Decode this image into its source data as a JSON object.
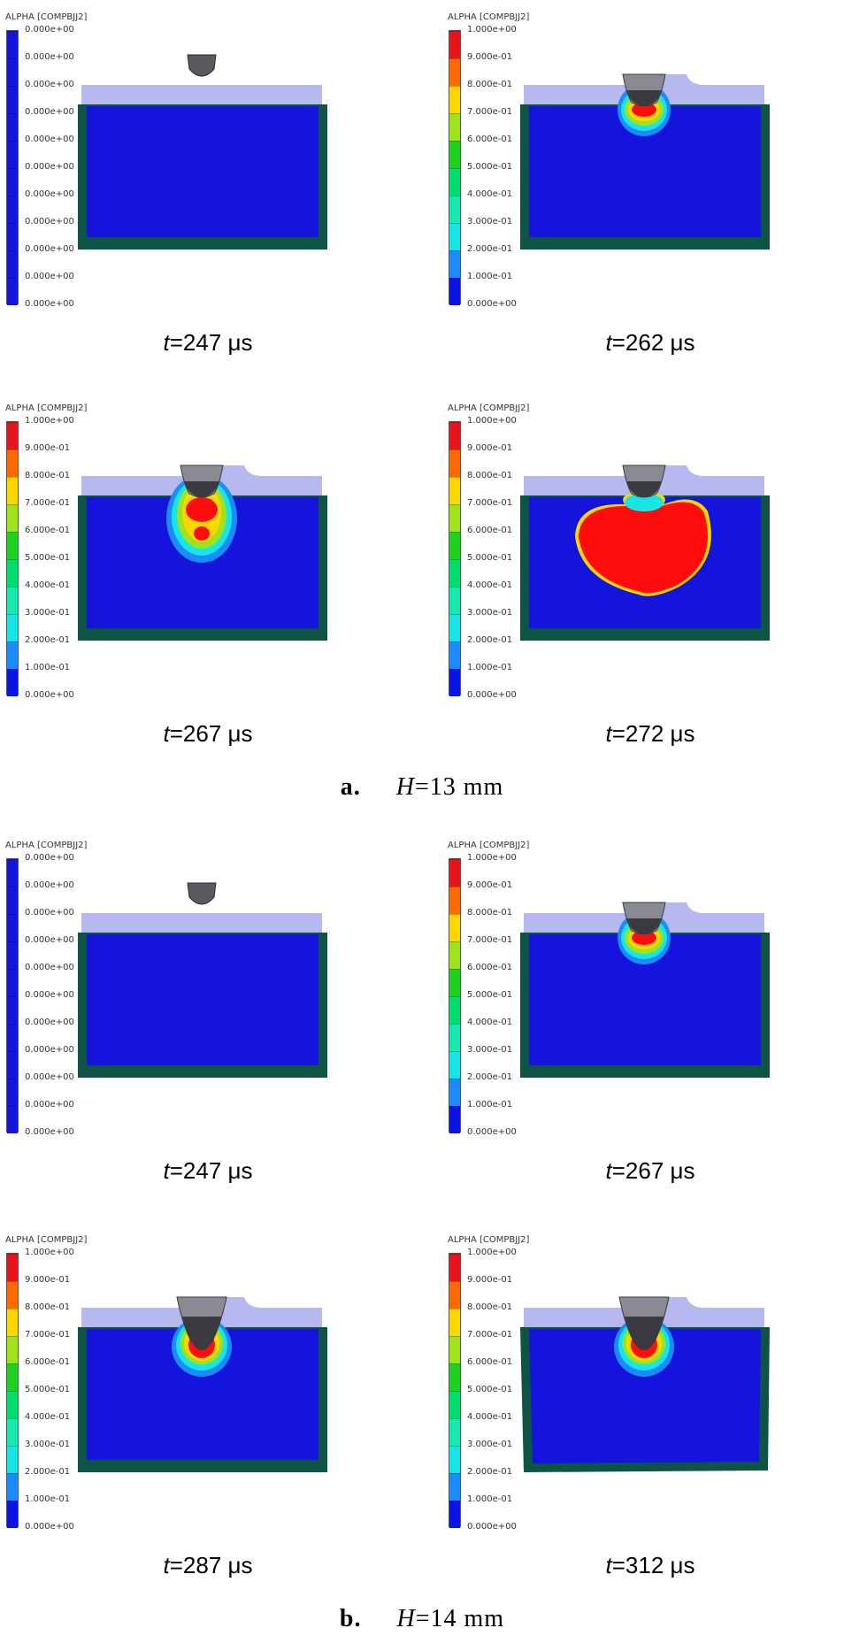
{
  "colorbar": {
    "title": "ALPHA [COMPBJJ2]",
    "zero_ticks": [
      "0.000e+00",
      "0.000e+00",
      "0.000e+00",
      "0.000e+00",
      "0.000e+00",
      "0.000e+00",
      "0.000e+00",
      "0.000e+00",
      "0.000e+00",
      "0.000e+00",
      "0.000e+00"
    ],
    "full_ticks": [
      "1.000e+00",
      "9.000e-01",
      "8.000e-01",
      "7.000e-01",
      "6.000e-01",
      "5.000e-01",
      "4.000e-01",
      "3.000e-01",
      "2.000e-01",
      "1.000e-01",
      "0.000e+00"
    ],
    "colors": [
      "#e8141c",
      "#ff6a00",
      "#ffd700",
      "#9fe31d",
      "#1fd21f",
      "#00df6e",
      "#18e8b0",
      "#17e6e6",
      "#1a8cff",
      "#0a14e6"
    ],
    "uniform_color": "#1414dc"
  },
  "groups": [
    {
      "label": "a.",
      "h_var": "H",
      "h_value": "=13 mm",
      "panels": [
        {
          "time_var": "t",
          "time_value": "=247 μs",
          "stage": "0",
          "scale": "zero"
        },
        {
          "time_var": "t",
          "time_value": "=262 μs",
          "stage": "1",
          "scale": "full"
        },
        {
          "time_var": "t",
          "time_value": "=267 μs",
          "stage": "2",
          "scale": "full"
        },
        {
          "time_var": "t",
          "time_value": "=272 μs",
          "stage": "3",
          "scale": "full"
        }
      ]
    },
    {
      "label": "b.",
      "h_var": "H",
      "h_value": "=14 mm",
      "panels": [
        {
          "time_var": "t",
          "time_value": "=247 μs",
          "stage": "0",
          "scale": "zero"
        },
        {
          "time_var": "t",
          "time_value": "=267 μs",
          "stage": "1",
          "scale": "full"
        },
        {
          "time_var": "t",
          "time_value": "=287 μs",
          "stage": "4",
          "scale": "full"
        },
        {
          "time_var": "t",
          "time_value": "=312 μs",
          "stage": "5",
          "scale": "full"
        }
      ]
    }
  ],
  "colors": {
    "explosive_blue": "#1414dc",
    "casing_green": "#0d5444",
    "plate_lavender": "#b6b8f0",
    "projectile_gray": "#5a5a60",
    "reacted_red": "#ff0d0d"
  }
}
